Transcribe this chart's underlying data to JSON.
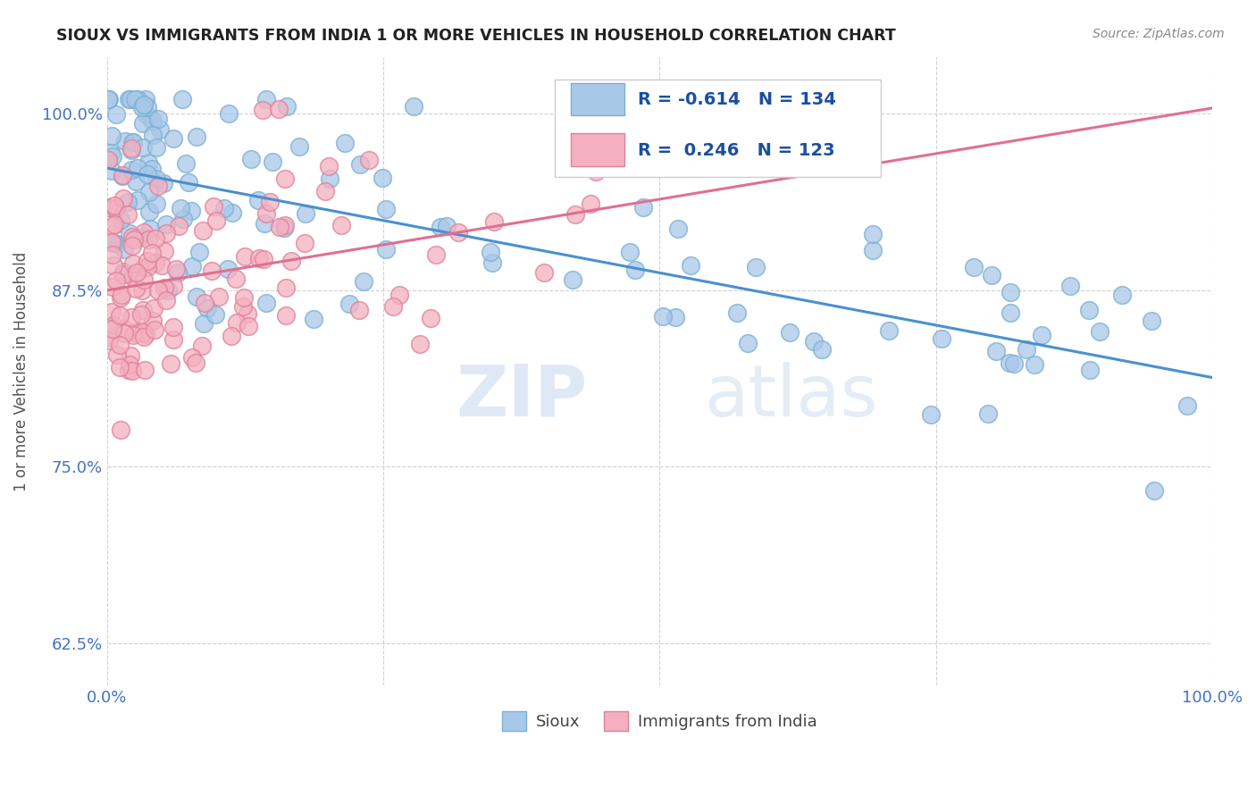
{
  "title": "SIOUX VS IMMIGRANTS FROM INDIA 1 OR MORE VEHICLES IN HOUSEHOLD CORRELATION CHART",
  "source_text": "Source: ZipAtlas.com",
  "ylabel": "1 or more Vehicles in Household",
  "xlim": [
    0.0,
    1.0
  ],
  "ylim": [
    0.595,
    1.04
  ],
  "yticks": [
    0.625,
    0.75,
    0.875,
    1.0
  ],
  "ytick_labels": [
    "62.5%",
    "75.0%",
    "87.5%",
    "100.0%"
  ],
  "xticks": [
    0.0,
    0.25,
    0.5,
    0.75,
    1.0
  ],
  "xtick_labels": [
    "0.0%",
    "",
    "",
    "",
    "100.0%"
  ],
  "sioux_color": "#a8c8e8",
  "india_color": "#f4b0c0",
  "sioux_edge_color": "#7aafd4",
  "india_edge_color": "#e08098",
  "sioux_line_color": "#4a90d0",
  "india_line_color": "#e07090",
  "sioux_R": -0.614,
  "sioux_N": 134,
  "india_R": 0.246,
  "india_N": 123,
  "legend_label_sioux": "Sioux",
  "legend_label_india": "Immigrants from India",
  "watermark_zip": "ZIP",
  "watermark_atlas": "atlas",
  "background_color": "#ffffff",
  "grid_color": "#cccccc",
  "title_color": "#222222",
  "tick_color": "#4472c4",
  "ylabel_color": "#555555"
}
